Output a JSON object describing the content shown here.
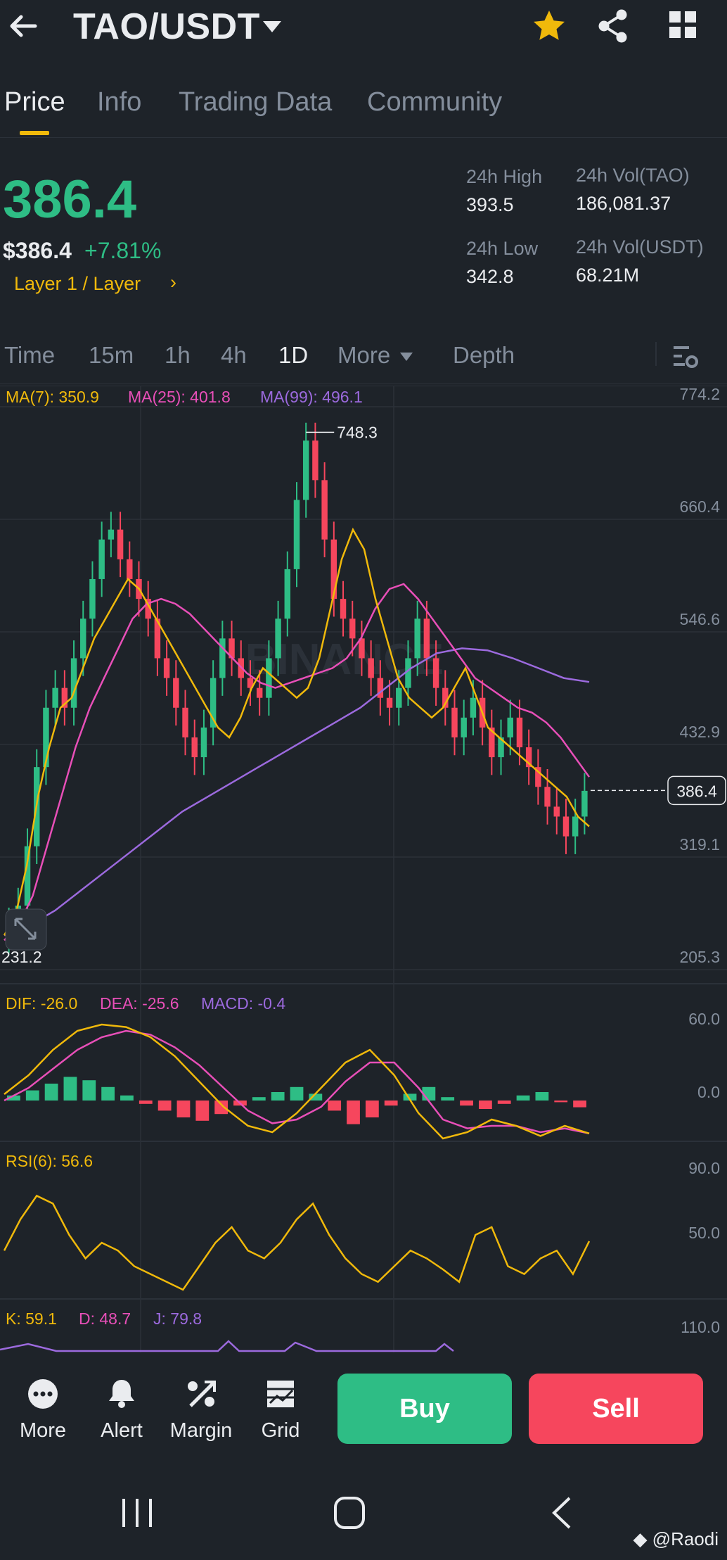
{
  "header": {
    "pair": "TAO/USDT"
  },
  "tabs": [
    {
      "label": "Price",
      "active": true
    },
    {
      "label": "Info",
      "active": false
    },
    {
      "label": "Trading Data",
      "active": false
    },
    {
      "label": "Community",
      "active": false
    }
  ],
  "price": {
    "last": "386.4",
    "fiat": "$386.4",
    "change": "+7.81%",
    "tag": "Layer 1 / Layer",
    "high_label": "24h High",
    "high_value": "393.5",
    "low_label": "24h Low",
    "low_value": "342.8",
    "vol_tao_label": "24h Vol(TAO)",
    "vol_tao_value": "186,081.37",
    "vol_usdt_label": "24h Vol(USDT)",
    "vol_usdt_value": "68.21M"
  },
  "intervals": [
    {
      "label": "Time",
      "active": false
    },
    {
      "label": "15m",
      "active": false
    },
    {
      "label": "1h",
      "active": false
    },
    {
      "label": "4h",
      "active": false
    },
    {
      "label": "1D",
      "active": true
    },
    {
      "label": "More",
      "active": false
    },
    {
      "label": "Depth",
      "active": false
    }
  ],
  "chart_data": {
    "type": "candlestick",
    "watermark": "BINANCE",
    "ma_legend": [
      {
        "label": "MA(7): 350.9",
        "color": "#f0b90b"
      },
      {
        "label": "MA(25): 401.8",
        "color": "#e84fb8"
      },
      {
        "label": "MA(99): 496.1",
        "color": "#9c6ade"
      }
    ],
    "y_ticks": [
      "774.2",
      "660.4",
      "546.6",
      "432.9",
      "319.1",
      "205.3"
    ],
    "y_range": [
      205.3,
      774.2
    ],
    "max_label": "748.3",
    "min_label": "231.2",
    "current_price_label": "386.4",
    "closes": [
      250,
      270,
      330,
      410,
      470,
      490,
      470,
      520,
      560,
      600,
      640,
      650,
      620,
      600,
      580,
      560,
      520,
      500,
      470,
      440,
      420,
      450,
      500,
      540,
      520,
      500,
      490,
      480,
      520,
      560,
      610,
      680,
      740,
      700,
      640,
      580,
      560,
      540,
      520,
      500,
      480,
      470,
      490,
      520,
      560,
      520,
      490,
      470,
      440,
      460,
      480,
      450,
      420,
      440,
      460,
      430,
      410,
      390,
      370,
      360,
      340,
      360,
      386
    ],
    "ma_lines": {
      "ma7": [
        240,
        260,
        310,
        380,
        430,
        470,
        480,
        510,
        540,
        560,
        580,
        600,
        590,
        570,
        550,
        530,
        510,
        490,
        470,
        450,
        440,
        460,
        490,
        510,
        500,
        490,
        480,
        490,
        520,
        570,
        620,
        650,
        630,
        580,
        540,
        500,
        480,
        470,
        460,
        470,
        490,
        510,
        480,
        450,
        440,
        430,
        420,
        410,
        400,
        390,
        380,
        360,
        350
      ],
      "ma25": [
        235,
        250,
        280,
        330,
        380,
        430,
        470,
        500,
        530,
        560,
        575,
        580,
        575,
        565,
        550,
        535,
        520,
        505,
        495,
        490,
        495,
        500,
        505,
        510,
        520,
        540,
        570,
        590,
        595,
        580,
        560,
        540,
        520,
        500,
        490,
        480,
        470,
        465,
        455,
        440,
        420,
        400
      ],
      "ma99": [
        240,
        250,
        265,
        285,
        305,
        325,
        345,
        365,
        380,
        395,
        410,
        425,
        440,
        455,
        470,
        490,
        510,
        525,
        530,
        528,
        520,
        510,
        500,
        496
      ]
    },
    "indicators": {
      "macd_legend": [
        {
          "label": "DIF: -26.0",
          "color": "#f0b90b"
        },
        {
          "label": "DEA: -25.6",
          "color": "#e84fb8"
        },
        {
          "label": "MACD: -0.4",
          "color": "#9c6ade"
        }
      ],
      "macd_ticks": [
        "60.0",
        "0.0"
      ],
      "rsi_legend": [
        {
          "label": "RSI(6): 56.6",
          "color": "#f0b90b"
        }
      ],
      "rsi_ticks": [
        "90.0",
        "50.0"
      ],
      "kdj_legend": [
        {
          "label": "K: 59.1",
          "color": "#f0b90b"
        },
        {
          "label": "D: 48.7",
          "color": "#e84fb8"
        },
        {
          "label": "J: 79.8",
          "color": "#9c6ade"
        }
      ],
      "kdj_ticks": [
        "110.0"
      ],
      "dif": [
        5,
        20,
        40,
        55,
        60,
        58,
        50,
        35,
        15,
        -5,
        -20,
        -25,
        -10,
        10,
        30,
        40,
        20,
        -10,
        -30,
        -25,
        -15,
        -20,
        -28,
        -20,
        -26
      ],
      "dea": [
        0,
        10,
        25,
        40,
        50,
        55,
        52,
        42,
        28,
        10,
        -8,
        -18,
        -15,
        -5,
        15,
        30,
        30,
        10,
        -15,
        -22,
        -20,
        -20,
        -25,
        -22,
        -26
      ],
      "histogram": [
        3,
        6,
        10,
        14,
        12,
        8,
        3,
        -2,
        -6,
        -10,
        -12,
        -8,
        -3,
        2,
        5,
        8,
        4,
        -6,
        -14,
        -10,
        -3,
        4,
        8,
        2,
        -3,
        -5,
        -2,
        3,
        5,
        -1,
        -4
      ],
      "rsi": [
        50,
        70,
        85,
        80,
        60,
        45,
        55,
        50,
        40,
        35,
        30,
        25,
        40,
        55,
        65,
        50,
        45,
        55,
        70,
        80,
        60,
        45,
        35,
        30,
        40,
        50,
        45,
        38,
        30,
        60,
        65,
        40,
        35,
        45,
        50,
        35,
        56
      ]
    }
  },
  "actions": [
    {
      "label": "More",
      "icon": "more-icon"
    },
    {
      "label": "Alert",
      "icon": "bell-icon"
    },
    {
      "label": "Margin",
      "icon": "margin-icon"
    },
    {
      "label": "Grid",
      "icon": "grid-bot-icon"
    }
  ],
  "buttons": {
    "buy": "Buy",
    "sell": "Sell"
  },
  "watermark_credit": "@Raodi",
  "colors": {
    "background": "#1e2329",
    "up": "#2ebd85",
    "down": "#f6465d",
    "accent": "#f0b90b",
    "muted": "#848e9c"
  }
}
